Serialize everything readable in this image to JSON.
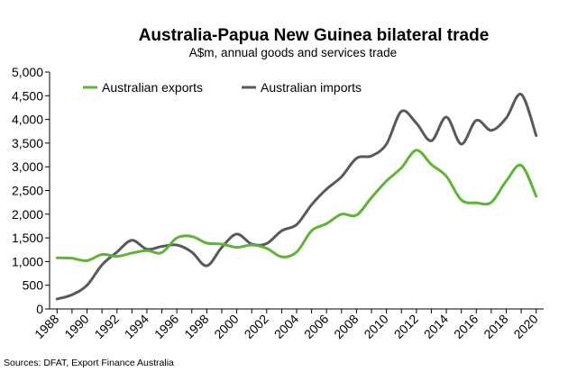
{
  "chart_data": {
    "type": "line",
    "title": "Australia-Papua New Guinea bilateral trade",
    "subtitle": "A$m, annual goods and services trade",
    "source": "Sources: DFAT, Export Finance Australia",
    "ylim": [
      0,
      5000
    ],
    "yticks": [
      0,
      500,
      1000,
      1500,
      2000,
      2500,
      3000,
      3500,
      4000,
      4500,
      5000
    ],
    "ytick_labels": [
      "0",
      "500",
      "1,000",
      "1,500",
      "2,000",
      "2,500",
      "3,000",
      "3,500",
      "4,000",
      "4,500",
      "5,000"
    ],
    "xticks": [
      1988,
      1990,
      1992,
      1994,
      1996,
      1998,
      2000,
      2002,
      2004,
      2006,
      2008,
      2010,
      2012,
      2014,
      2016,
      2018,
      2020
    ],
    "x": [
      1988,
      1989,
      1990,
      1991,
      1992,
      1993,
      1994,
      1995,
      1996,
      1997,
      1998,
      1999,
      2000,
      2001,
      2002,
      2003,
      2004,
      2005,
      2006,
      2007,
      2008,
      2009,
      2010,
      2011,
      2012,
      2013,
      2014,
      2015,
      2016,
      2017,
      2018,
      2019,
      2020
    ],
    "grid": false,
    "legend_position": "top-left",
    "series": [
      {
        "name": "Australian exports",
        "color": "#5db534",
        "values": [
          1080,
          1070,
          1020,
          1150,
          1110,
          1180,
          1230,
          1190,
          1500,
          1530,
          1390,
          1370,
          1300,
          1350,
          1280,
          1100,
          1200,
          1650,
          1800,
          2000,
          1980,
          2350,
          2700,
          2980,
          3350,
          3050,
          2800,
          2300,
          2240,
          2250,
          2700,
          3030,
          2380
        ]
      },
      {
        "name": "Australian imports",
        "color": "#555a5e",
        "values": [
          210,
          300,
          500,
          930,
          1200,
          1450,
          1260,
          1320,
          1350,
          1200,
          910,
          1300,
          1580,
          1370,
          1380,
          1650,
          1780,
          2200,
          2530,
          2790,
          3180,
          3230,
          3480,
          4170,
          3920,
          3550,
          4050,
          3480,
          3980,
          3770,
          4030,
          4530,
          3660
        ]
      }
    ]
  }
}
